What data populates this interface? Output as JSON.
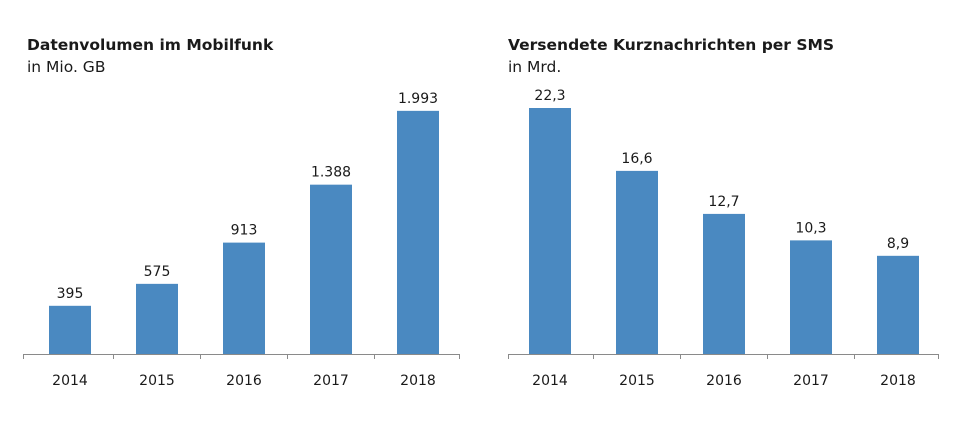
{
  "chart_data": [
    {
      "type": "bar",
      "title": "Datenvolumen im Mobilfunk",
      "subtitle": "in Mio. GB",
      "categories": [
        "2014",
        "2015",
        "2016",
        "2017",
        "2018"
      ],
      "values": [
        395,
        575,
        913,
        1388,
        1993
      ],
      "value_labels": [
        "395",
        "575",
        "913",
        "1.388",
        "1.993"
      ],
      "ylim": [
        0,
        2000
      ],
      "grid": false,
      "color": "#4a89c1"
    },
    {
      "type": "bar",
      "title": "Versendete Kurznachrichten per SMS",
      "subtitle": "in Mrd.",
      "categories": [
        "2014",
        "2015",
        "2016",
        "2017",
        "2018"
      ],
      "values": [
        22.3,
        16.6,
        12.7,
        10.3,
        8.9
      ],
      "value_labels": [
        "22,3",
        "16,6",
        "12,7",
        "10,3",
        "8,9"
      ],
      "ylim": [
        0,
        22.3
      ],
      "grid": false,
      "color": "#4a89c1"
    }
  ]
}
